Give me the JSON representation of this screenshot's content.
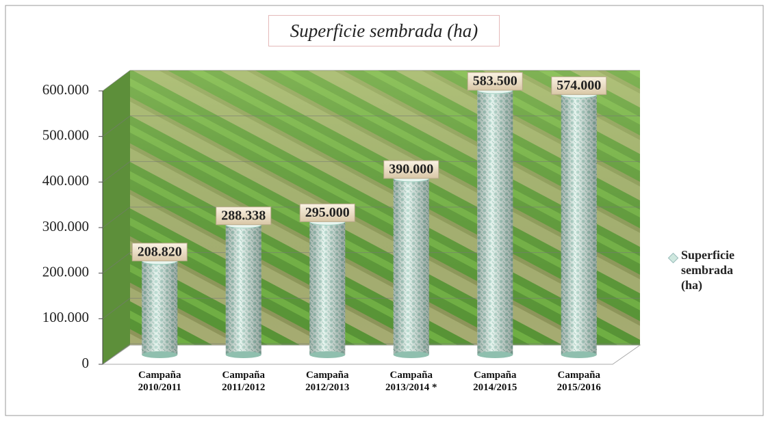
{
  "chart_data": {
    "type": "bar",
    "title": "Superficie sembrada (ha)",
    "categories": [
      "Campaña 2010/2011",
      "Campaña 2011/2012",
      "Campaña 2012/2013",
      "Campaña 2013/2014 *",
      "Campaña 2014/2015",
      "Campaña 2015/2016"
    ],
    "series": [
      {
        "name": "Superficie sembrada (ha)",
        "color": "#cfe8df",
        "values": [
          208820,
          288338,
          295000,
          390000,
          583500,
          574000
        ],
        "value_labels": [
          "208.820",
          "288.338",
          "295.000",
          "390.000",
          "583.500",
          "574.000"
        ]
      }
    ],
    "ylim": [
      0,
      600000
    ],
    "yticks": [
      0,
      {
        "value": 100000,
        "label": "100.000"
      },
      {
        "value": 200000,
        "label": "200.000"
      },
      {
        "value": 300000,
        "label": "300.000"
      },
      {
        "value": 400000,
        "label": "400.000"
      },
      {
        "value": 500000,
        "label": "500.000"
      },
      {
        "value": 600000,
        "label": "600.000"
      }
    ],
    "grid": true,
    "legend": "right"
  }
}
